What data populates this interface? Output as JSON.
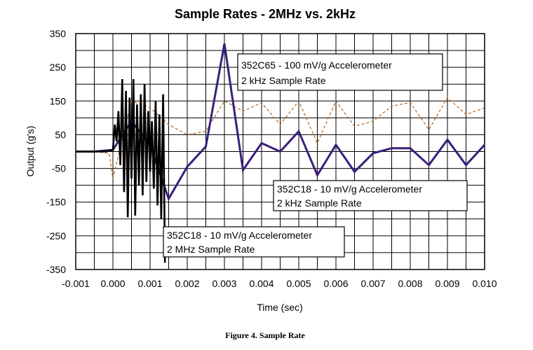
{
  "caption": "Figure 4. Sample Rate",
  "chart_data": {
    "type": "line",
    "title": "Sample Rates - 2MHz vs. 2kHz",
    "xlabel": "Time (sec)",
    "ylabel": "Output (g's)",
    "xlim": [
      -0.001,
      0.01
    ],
    "ylim": [
      -350,
      350
    ],
    "grid": true,
    "x_ticks": [
      "-0.001",
      "0.000",
      "0.001",
      "0.002",
      "0.003",
      "0.004",
      "0.005",
      "0.006",
      "0.007",
      "0.008",
      "0.009",
      "0.010"
    ],
    "y_ticks": [
      "350",
      "250",
      "150",
      "50",
      "-50",
      "-150",
      "-250",
      "-350"
    ],
    "series": [
      {
        "name": "352C65 - 100 mV/g Accelerometer 2 kHz Sample Rate",
        "color": "#b5651d",
        "style": "dashed",
        "x": [
          -0.001,
          -0.0005,
          -0.0001,
          0.0,
          0.0005,
          0.001,
          0.0015,
          0.002,
          0.0025,
          0.003,
          0.0035,
          0.004,
          0.0045,
          0.005,
          0.0055,
          0.006,
          0.0065,
          0.007,
          0.0075,
          0.008,
          0.0085,
          0.009,
          0.0095,
          0.01
        ],
        "y": [
          0,
          0,
          -5,
          -80,
          150,
          130,
          80,
          50,
          60,
          150,
          120,
          145,
          80,
          150,
          25,
          150,
          75,
          90,
          135,
          145,
          65,
          160,
          110,
          130
        ]
      },
      {
        "name": "352C18 - 10 mV/g Accelerometer 2 kHz Sample Rate",
        "color": "#3a1f7a",
        "style": "solid",
        "x": [
          -0.001,
          -0.0005,
          0.0,
          0.0005,
          0.001,
          0.0015,
          0.002,
          0.0025,
          0.003,
          0.0035,
          0.004,
          0.0045,
          0.005,
          0.0055,
          0.006,
          0.0065,
          0.007,
          0.0075,
          0.008,
          0.0085,
          0.009,
          0.0095,
          0.01
        ],
        "y": [
          0,
          0,
          5,
          90,
          20,
          -140,
          -45,
          15,
          320,
          -55,
          25,
          0,
          60,
          -70,
          20,
          -60,
          -5,
          10,
          10,
          -40,
          35,
          -40,
          20
        ]
      },
      {
        "name": "352C18 - 10 mV/g Accelerometer 2 MHz Sample Rate",
        "color": "#000000",
        "style": "solid",
        "x": [
          -0.001,
          -0.0002,
          0.0,
          5e-05,
          0.0001,
          0.00015,
          0.0002,
          0.00025,
          0.0003,
          0.00035,
          0.0004,
          0.00045,
          0.0005,
          0.00055,
          0.0006,
          0.00065,
          0.0007,
          0.00075,
          0.0008,
          0.00085,
          0.0009,
          0.00095,
          0.001,
          0.00105,
          0.0011,
          0.00115,
          0.0012,
          0.00125,
          0.0013,
          0.00135,
          0.0014
        ],
        "y": [
          0,
          0,
          5,
          80,
          30,
          120,
          -40,
          215,
          -120,
          180,
          -195,
          160,
          -80,
          215,
          -190,
          140,
          -100,
          170,
          -130,
          200,
          -90,
          120,
          -60,
          90,
          -110,
          150,
          -160,
          110,
          -200,
          170,
          -330
        ]
      }
    ],
    "annotations": [
      {
        "line1": "352C65 - 100 mV/g Accelerometer",
        "line2": "2 kHz Sample Rate"
      },
      {
        "line1": "352C18 - 10 mV/g Accelerometer",
        "line2": "2 kHz Sample Rate"
      },
      {
        "line1": "352C18 - 10 mV/g Accelerometer",
        "line2": "2 MHz Sample Rate"
      }
    ]
  }
}
